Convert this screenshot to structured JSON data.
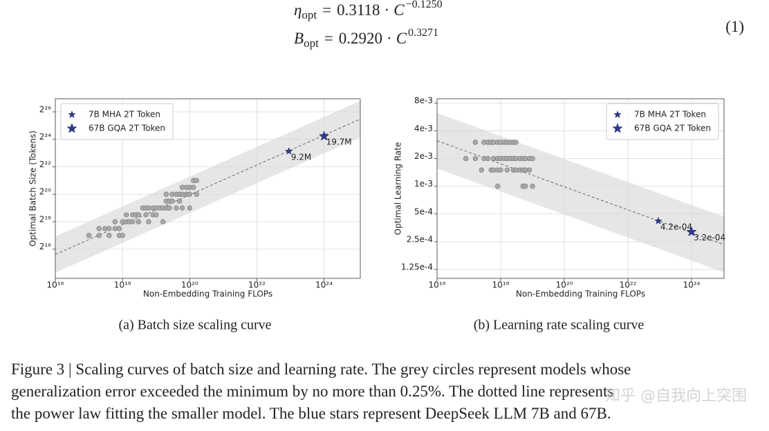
{
  "chart_data": [
    {
      "type": "scatter",
      "caption": "(a) Batch size scaling curve",
      "xlabel": "Non-Embedding Training FLOPs",
      "ylabel": "Optimal Batch Size (Tokens)",
      "xscale": "log",
      "yscale": "log",
      "grid": true,
      "legend": "upper left",
      "xlim": [
        1e+16,
        1.2e+25
      ],
      "ylim": [
        15000,
        130000000
      ],
      "xticks": [
        {
          "value": 1e+16,
          "label": "10¹⁶"
        },
        {
          "value": 1e+18,
          "label": "10¹⁸"
        },
        {
          "value": 1e+20,
          "label": "10²⁰"
        },
        {
          "value": 1e+22,
          "label": "10²²"
        },
        {
          "value": 1e+24,
          "label": "10²⁴"
        }
      ],
      "yticks": [
        {
          "value": 65536,
          "label": "2¹⁶"
        },
        {
          "value": 262144,
          "label": "2¹⁸"
        },
        {
          "value": 1048576,
          "label": "2²⁰"
        },
        {
          "value": 4194304,
          "label": "2²²"
        },
        {
          "value": 16777216,
          "label": "2²⁴"
        },
        {
          "value": 67108864,
          "label": "2²⁶"
        }
      ],
      "fit": {
        "symbol": "B",
        "symbol_sub": "opt",
        "equals": "=",
        "coefficient": 0.292,
        "coefficient_label": "0.2920",
        "times": "·",
        "variable": "C",
        "exponent": 0.3271,
        "band_ratio": 2.5,
        "color": "#666666",
        "band_color": "#e6e6e6"
      },
      "series": [
        {
          "marker": "circle",
          "color": "#a8a8a8",
          "x": [
            1e+17,
            2e+17,
            2e+17,
            3e+17,
            4e+17,
            4e+17,
            6e+17,
            6e+17,
            8e+17,
            8e+17,
            1e+18,
            1e+18,
            1.3e+18,
            1.3e+18,
            1.6e+18,
            2e+18,
            2e+18,
            2.5e+18,
            3e+18,
            3e+18,
            4e+18,
            5e+18,
            5e+18,
            6e+18,
            6e+18,
            8e+18,
            8e+18,
            1e+19,
            1e+19,
            1.3e+19,
            1.6e+19,
            1.6e+19,
            2e+19,
            2e+19,
            2e+19,
            2.5e+19,
            2.5e+19,
            3e+19,
            3e+19,
            4e+19,
            4e+19,
            5e+19,
            5e+19,
            6e+19,
            6e+19,
            6e+19,
            8e+19,
            8e+19,
            1e+20,
            1e+20,
            1e+20,
            1.3e+20,
            1.3e+20,
            1.6e+20,
            1.6e+20
          ],
          "values": [
            131072,
            185364,
            131072,
            185364,
            185364,
            131072,
            185364,
            262144,
            185364,
            131072,
            262144,
            131072,
            262144,
            370728,
            262144,
            370728,
            262144,
            370728,
            262144,
            370728,
            524288,
            370728,
            524288,
            262144,
            524288,
            370728,
            524288,
            524288,
            370728,
            524288,
            524288,
            262144,
            741455,
            524288,
            1048576,
            741455,
            524288,
            1048576,
            741455,
            1048576,
            524288,
            1048576,
            741455,
            1482910,
            1048576,
            524288,
            1482910,
            1048576,
            1482910,
            524288,
            1048576,
            2097152,
            1482910,
            2097152,
            1048576
          ]
        },
        {
          "name": "7B MHA 2T Token",
          "marker": "star",
          "size": 5,
          "color": "#2f3b8f",
          "x": [
            9e+22
          ],
          "values": [
            9200000
          ],
          "value_labels": [
            "9.2M"
          ]
        },
        {
          "name": "67B GQA 2T Token",
          "marker": "star",
          "size": 7,
          "color": "#2f3b8f",
          "x": [
            1e+24
          ],
          "values": [
            19700000
          ],
          "value_labels": [
            "19.7M"
          ]
        }
      ]
    },
    {
      "type": "scatter",
      "caption": "(b) Learning rate scaling curve",
      "xlabel": "Non-Embedding Training FLOPs",
      "ylabel": "Optimal Learning Rate",
      "xscale": "log",
      "yscale": "log",
      "grid": true,
      "legend": "upper right",
      "xlim": [
        1e+16,
        1.05e+25
      ],
      "ylim": [
        0.0001,
        0.0089
      ],
      "xticks": [
        {
          "value": 1e+16,
          "label": "10¹⁶"
        },
        {
          "value": 1e+18,
          "label": "10¹⁸"
        },
        {
          "value": 1e+20,
          "label": "10²⁰"
        },
        {
          "value": 1e+22,
          "label": "10²²"
        },
        {
          "value": 1e+24,
          "label": "10²⁴"
        }
      ],
      "yticks": [
        {
          "value": 0.000125,
          "label": "1.25e-4"
        },
        {
          "value": 0.00025,
          "label": "2.5e-4"
        },
        {
          "value": 0.0005,
          "label": "5e-4"
        },
        {
          "value": 0.001,
          "label": "1e-3"
        },
        {
          "value": 0.002,
          "label": "2e-3"
        },
        {
          "value": 0.004,
          "label": "4e-3"
        },
        {
          "value": 0.008,
          "label": "8e-3"
        }
      ],
      "fit": {
        "symbol": "η",
        "symbol_sub": "opt",
        "equals": "=",
        "coefficient": 0.3118,
        "times": "·",
        "variable": "C",
        "exponent": -0.125,
        "exponent_label": "−0.1250",
        "band_ratio": 2,
        "color": "#666666",
        "band_color": "#e6e6e6"
      },
      "series": [
        {
          "marker": "circle",
          "color": "#a8a8a8",
          "x": [
            8e+16,
            1.6e+17,
            1.6e+17,
            2.5e+17,
            3e+17,
            3e+17,
            4e+17,
            4e+17,
            5e+17,
            5e+17,
            6e+17,
            6e+17,
            6e+17,
            8e+17,
            8e+17,
            8e+17,
            8e+17,
            1e+18,
            1e+18,
            1e+18,
            1.3e+18,
            1.3e+18,
            1.6e+18,
            1.6e+18,
            1.6e+18,
            2e+18,
            2e+18,
            2.5e+18,
            2.5e+18,
            2.5e+18,
            3e+18,
            3e+18,
            3e+18,
            4e+18,
            4e+18,
            5e+18,
            5e+18,
            5e+18,
            6e+18,
            6e+18,
            6e+18,
            8e+18,
            8e+18,
            1e+19,
            1e+19
          ],
          "values": [
            0.002,
            0.003,
            0.002,
            0.0015,
            0.003,
            0.002,
            0.003,
            0.002,
            0.003,
            0.0015,
            0.003,
            0.002,
            0.0015,
            0.003,
            0.002,
            0.0015,
            0.001,
            0.003,
            0.002,
            0.0015,
            0.003,
            0.002,
            0.003,
            0.002,
            0.0015,
            0.003,
            0.002,
            0.003,
            0.002,
            0.0015,
            0.003,
            0.002,
            0.0015,
            0.002,
            0.0015,
            0.002,
            0.0015,
            0.001,
            0.002,
            0.0015,
            0.001,
            0.002,
            0.0015,
            0.002,
            0.001
          ]
        },
        {
          "name": "7B MHA 2T Token",
          "marker": "star",
          "size": 5,
          "color": "#2f3b8f",
          "x": [
            9e+22
          ],
          "values": [
            0.00042
          ],
          "value_labels": [
            "4.2e-04"
          ]
        },
        {
          "name": "67B GQA 2T Token",
          "marker": "star",
          "size": 7,
          "color": "#2f3b8f",
          "x": [
            1e+24
          ],
          "values": [
            0.00032
          ],
          "value_labels": [
            "3.2e-04"
          ]
        }
      ]
    }
  ],
  "equation_number": "(1)",
  "figure_caption": [
    "Figure 3 | Scaling curves of batch size and learning rate. The grey circles represent models whose",
    "generalization error exceeded the minimum by no more than 0.25%. The dotted line represents",
    "the power law fitting the smaller model. The blue stars represent DeepSeek LLM 7B and 67B."
  ],
  "watermark": "知乎 @自我向上突围"
}
